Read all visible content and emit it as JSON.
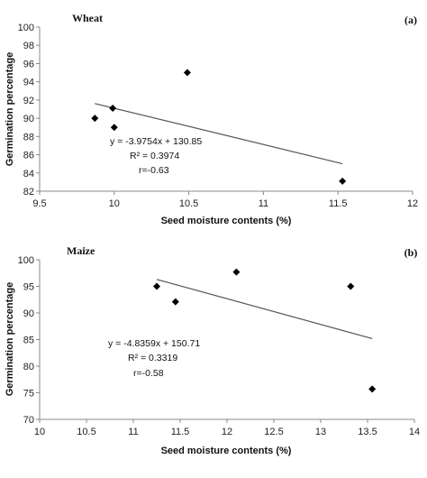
{
  "chart_data": [
    {
      "type": "scatter",
      "title": "Wheat",
      "panel_label": "(a)",
      "xlabel": "Seed moisture contents (%)",
      "ylabel": "Germination percentage",
      "xlim": [
        9.5,
        12
      ],
      "ylim": [
        82,
        100
      ],
      "xticks": [
        "9.5",
        "10",
        "10.5",
        "11",
        "11.5",
        "12"
      ],
      "yticks": [
        "82",
        "84",
        "86",
        "88",
        "90",
        "92",
        "94",
        "96",
        "98",
        "100"
      ],
      "x": [
        9.87,
        9.99,
        10.0,
        10.49,
        11.53
      ],
      "y": [
        90,
        91.1,
        89,
        95,
        83.1
      ],
      "trendline": {
        "slope": -3.9754,
        "intercept": 130.85,
        "x_range": [
          9.87,
          11.53
        ]
      },
      "equation_lines": [
        "y = -3.9754x + 130.85",
        "R² = 0.3974",
        "r=-0.63"
      ],
      "grid": false,
      "marker_color": "#000000",
      "line_color": "#555555"
    },
    {
      "type": "scatter",
      "title": "Maize",
      "panel_label": "(b)",
      "xlabel": "Seed moisture contents (%)",
      "ylabel": "Germination percentage",
      "xlim": [
        10,
        14
      ],
      "ylim": [
        70,
        100
      ],
      "xticks": [
        "10",
        "10.5",
        "11",
        "11.5",
        "12",
        "12.5",
        "13",
        "13.5",
        "14"
      ],
      "yticks": [
        "70",
        "75",
        "80",
        "85",
        "90",
        "95",
        "100"
      ],
      "x": [
        11.25,
        11.45,
        12.1,
        13.32,
        13.55
      ],
      "y": [
        95,
        92.1,
        97.7,
        95,
        75.7
      ],
      "trendline": {
        "slope": -4.8359,
        "intercept": 150.71,
        "x_range": [
          11.25,
          13.55
        ]
      },
      "equation_lines": [
        "y = -4.8359x + 150.71",
        "R² = 0.3319",
        "r=-0.58"
      ],
      "grid": false,
      "marker_color": "#000000",
      "line_color": "#555555"
    }
  ]
}
